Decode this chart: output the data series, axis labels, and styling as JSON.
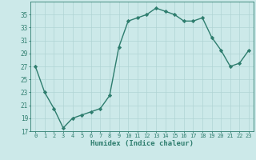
{
  "x": [
    0,
    1,
    2,
    3,
    4,
    5,
    6,
    7,
    8,
    9,
    10,
    11,
    12,
    13,
    14,
    15,
    16,
    17,
    18,
    19,
    20,
    21,
    22,
    23
  ],
  "y": [
    27,
    23,
    20.5,
    17.5,
    19,
    19.5,
    20,
    20.5,
    22.5,
    30,
    34,
    34.5,
    35,
    36,
    35.5,
    35,
    34,
    34,
    34.5,
    31.5,
    29.5,
    27,
    27.5,
    29.5
  ],
  "line_color": "#2e7d6e",
  "marker": "D",
  "marker_size": 2.2,
  "bg_color": "#cce9e9",
  "grid_color": "#b0d4d4",
  "xlabel": "Humidex (Indice chaleur)",
  "ylim": [
    17,
    37
  ],
  "xlim": [
    -0.5,
    23.5
  ],
  "yticks": [
    17,
    19,
    21,
    23,
    25,
    27,
    29,
    31,
    33,
    35
  ],
  "xticks": [
    0,
    1,
    2,
    3,
    4,
    5,
    6,
    7,
    8,
    9,
    10,
    11,
    12,
    13,
    14,
    15,
    16,
    17,
    18,
    19,
    20,
    21,
    22,
    23
  ],
  "xtick_labels": [
    "0",
    "1",
    "2",
    "3",
    "4",
    "5",
    "6",
    "7",
    "8",
    "9",
    "10",
    "11",
    "12",
    "13",
    "14",
    "15",
    "16",
    "17",
    "18",
    "19",
    "20",
    "21",
    "22",
    "23"
  ],
  "font_color": "#2e7d6e",
  "linewidth": 1.0
}
